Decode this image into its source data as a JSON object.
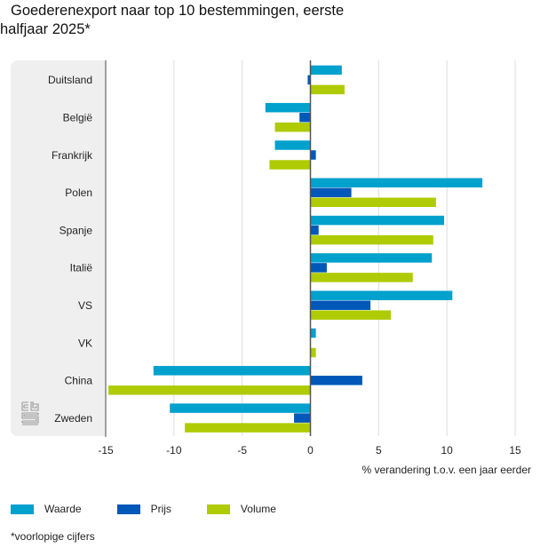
{
  "title_line1": "Goederenexport naar top 10 bestemmingen, eerste",
  "title_line2": "halfjaar 2025*",
  "footnote": "*voorlopige cijfers",
  "logo": "cbs-logo-icon",
  "colors": {
    "Waarde": "#00a1cd",
    "Prijs": "#0058b8",
    "Volume": "#afcb05"
  },
  "chart_data": {
    "type": "bar",
    "orientation": "horizontal",
    "title": "Goederenexport naar top 10 bestemmingen, eerste halfjaar 2025*",
    "xlabel": "% verandering t.o.v. een jaar eerder",
    "ylabel": "",
    "xlim": [
      -15,
      15
    ],
    "xticks": [
      -15,
      -10,
      -5,
      0,
      5,
      10,
      15
    ],
    "xtick_labels": [
      "-15",
      "-10",
      "-5",
      "0",
      "5",
      "10",
      "15"
    ],
    "grid": "vertical",
    "legend": "bottom-left",
    "categories": [
      "Duitsland",
      "België",
      "Frankrijk",
      "Polen",
      "Spanje",
      "Italië",
      "VS",
      "VK",
      "China",
      "Zweden"
    ],
    "series": [
      {
        "name": "Waarde",
        "values": [
          2.3,
          -3.3,
          -2.6,
          12.6,
          9.8,
          8.9,
          10.4,
          0.4,
          -11.5,
          -10.3
        ]
      },
      {
        "name": "Prijs",
        "values": [
          -0.2,
          -0.8,
          0.4,
          3.0,
          0.6,
          1.2,
          4.4,
          0.0,
          3.8,
          -1.2
        ]
      },
      {
        "name": "Volume",
        "values": [
          2.5,
          -2.6,
          -3.0,
          9.2,
          9.0,
          7.5,
          5.9,
          0.4,
          -14.8,
          -9.2
        ]
      }
    ]
  }
}
